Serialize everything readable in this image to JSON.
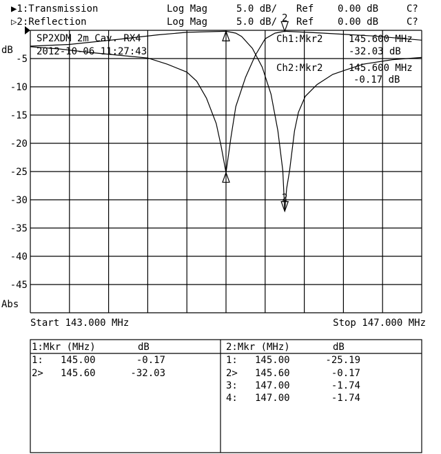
{
  "header": {
    "ch1": {
      "label": "▶1:Transmission",
      "format": "Log Mag",
      "scale": "5.0 dB/",
      "ref_label": "Ref",
      "ref_value": "0.00 dB",
      "cal": "C?"
    },
    "ch2": {
      "label": "▷2:Reflection",
      "format": "Log Mag",
      "scale": "5.0 dB/",
      "ref_label": "Ref",
      "ref_value": "0.00 dB",
      "cal": "C?"
    }
  },
  "annotation": {
    "title": "SP2XDM 2m Cav. RX4",
    "datetime": "2012-10-06 11:27:43",
    "ch1_marker": {
      "label": "Ch1:Mkr2",
      "freq": "145.600 MHz",
      "value": "-32.03 dB"
    },
    "ch2_marker": {
      "label": "Ch2:Mkr2",
      "freq": "145.600 MHz",
      "value": "-0.17 dB"
    }
  },
  "chart_data": {
    "type": "line",
    "ylabel": "dB",
    "ylabel_bottom": "Abs",
    "ylim": [
      -50,
      0
    ],
    "xlim": [
      143.0,
      147.0
    ],
    "y_ticks": [
      "-5",
      "-10",
      "-15",
      "-20",
      "-25",
      "-30",
      "-35",
      "-40",
      "-45"
    ],
    "x_divisions": 10,
    "y_divisions": 10,
    "grid": true,
    "start_label": "Start 143.000 MHz",
    "stop_label": "Stop 147.000 MHz",
    "colors": {
      "trace": "#000000",
      "grid": "#000000",
      "background": "#ffffff"
    },
    "series": [
      {
        "name": "1:Transmission",
        "x": [
          143.0,
          143.4,
          143.9,
          144.3,
          144.6,
          145.0,
          145.1,
          145.16,
          145.27,
          145.37,
          145.46,
          145.53,
          145.58,
          145.6,
          145.62,
          145.65,
          145.7,
          145.74,
          145.81,
          145.93,
          146.09,
          146.21,
          146.4,
          146.7,
          147.0
        ],
        "y": [
          -2.8,
          -2.5,
          -1.6,
          -0.8,
          -0.35,
          -0.17,
          -0.5,
          -1.1,
          -3.2,
          -6.5,
          -11.3,
          -17.8,
          -24.8,
          -32.03,
          -28.0,
          -24.8,
          -17.8,
          -14.5,
          -11.7,
          -9.6,
          -7.8,
          -7.1,
          -6.0,
          -5.2,
          -4.8
        ],
        "markers": [
          {
            "id": "1",
            "x": 145.0,
            "y": -0.17
          },
          {
            "id": "2",
            "x": 145.6,
            "y": -32.03
          }
        ]
      },
      {
        "name": "2:Reflection",
        "x": [
          143.0,
          143.3,
          143.6,
          143.9,
          144.2,
          144.4,
          144.6,
          144.7,
          144.8,
          144.9,
          144.95,
          145.0,
          145.05,
          145.1,
          145.2,
          145.3,
          145.4,
          145.5,
          145.6,
          146.0,
          146.5,
          147.0
        ],
        "y": [
          -2.9,
          -3.3,
          -3.9,
          -4.4,
          -4.9,
          -6.0,
          -7.4,
          -9.0,
          -12.0,
          -16.5,
          -20.5,
          -25.19,
          -19.0,
          -13.5,
          -8.3,
          -4.4,
          -1.5,
          -0.5,
          -0.17,
          -0.5,
          -1.0,
          -1.74
        ],
        "markers": [
          {
            "id": "1",
            "x": 145.0,
            "y": -25.19
          },
          {
            "id": "2",
            "x": 145.6,
            "y": -0.17
          }
        ]
      }
    ]
  },
  "marker_tables": [
    {
      "header_mkr": "1:Mkr (MHz)",
      "header_db": "dB",
      "rows": [
        {
          "id": "1:",
          "freq": "145.00",
          "db": "-0.17"
        },
        {
          "id": "2>",
          "freq": "145.60",
          "db": "-32.03"
        }
      ]
    },
    {
      "header_mkr": "2:Mkr (MHz)",
      "header_db": "dB",
      "rows": [
        {
          "id": "1:",
          "freq": "145.00",
          "db": "-25.19"
        },
        {
          "id": "2>",
          "freq": "145.60",
          "db": "-0.17"
        },
        {
          "id": "3:",
          "freq": "147.00",
          "db": "-1.74"
        },
        {
          "id": "4:",
          "freq": "147.00",
          "db": "-1.74"
        }
      ]
    }
  ]
}
